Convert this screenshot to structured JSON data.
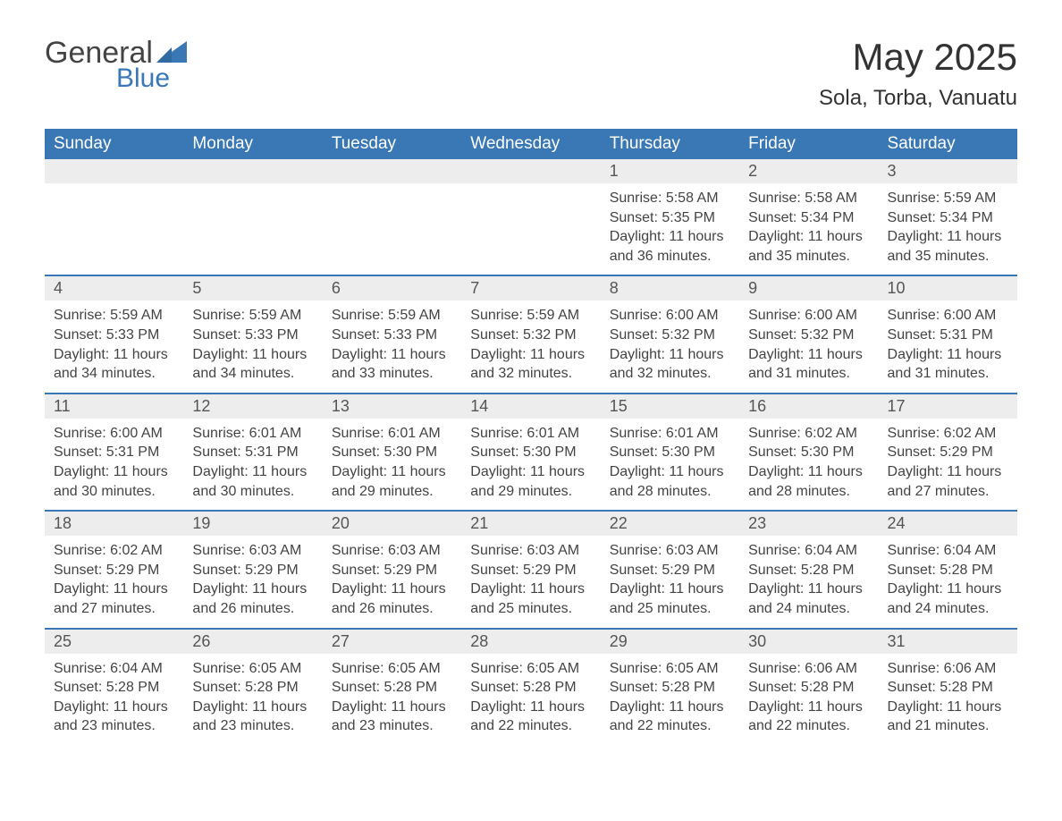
{
  "logo": {
    "general": "General",
    "blue": "Blue"
  },
  "title": "May 2025",
  "location": "Sola, Torba, Vanuatu",
  "header_row": [
    "Sunday",
    "Monday",
    "Tuesday",
    "Wednesday",
    "Thursday",
    "Friday",
    "Saturday"
  ],
  "colors": {
    "header_bg": "#3a78b5",
    "header_text": "#ffffff",
    "daynum_bg": "#ededed",
    "row_border": "#3a78b5",
    "logo_blue": "#3a78b5",
    "body_text": "#444444"
  },
  "layout": {
    "columns": 7,
    "rows": 5,
    "first_weekday_index": 4,
    "days_in_month": 31
  },
  "labels": {
    "sunrise": "Sunrise:",
    "sunset": "Sunset:",
    "daylight": "Daylight:"
  },
  "days": [
    {
      "n": "1",
      "sunrise": "5:58 AM",
      "sunset": "5:35 PM",
      "daylight": "11 hours and 36 minutes."
    },
    {
      "n": "2",
      "sunrise": "5:58 AM",
      "sunset": "5:34 PM",
      "daylight": "11 hours and 35 minutes."
    },
    {
      "n": "3",
      "sunrise": "5:59 AM",
      "sunset": "5:34 PM",
      "daylight": "11 hours and 35 minutes."
    },
    {
      "n": "4",
      "sunrise": "5:59 AM",
      "sunset": "5:33 PM",
      "daylight": "11 hours and 34 minutes."
    },
    {
      "n": "5",
      "sunrise": "5:59 AM",
      "sunset": "5:33 PM",
      "daylight": "11 hours and 34 minutes."
    },
    {
      "n": "6",
      "sunrise": "5:59 AM",
      "sunset": "5:33 PM",
      "daylight": "11 hours and 33 minutes."
    },
    {
      "n": "7",
      "sunrise": "5:59 AM",
      "sunset": "5:32 PM",
      "daylight": "11 hours and 32 minutes."
    },
    {
      "n": "8",
      "sunrise": "6:00 AM",
      "sunset": "5:32 PM",
      "daylight": "11 hours and 32 minutes."
    },
    {
      "n": "9",
      "sunrise": "6:00 AM",
      "sunset": "5:32 PM",
      "daylight": "11 hours and 31 minutes."
    },
    {
      "n": "10",
      "sunrise": "6:00 AM",
      "sunset": "5:31 PM",
      "daylight": "11 hours and 31 minutes."
    },
    {
      "n": "11",
      "sunrise": "6:00 AM",
      "sunset": "5:31 PM",
      "daylight": "11 hours and 30 minutes."
    },
    {
      "n": "12",
      "sunrise": "6:01 AM",
      "sunset": "5:31 PM",
      "daylight": "11 hours and 30 minutes."
    },
    {
      "n": "13",
      "sunrise": "6:01 AM",
      "sunset": "5:30 PM",
      "daylight": "11 hours and 29 minutes."
    },
    {
      "n": "14",
      "sunrise": "6:01 AM",
      "sunset": "5:30 PM",
      "daylight": "11 hours and 29 minutes."
    },
    {
      "n": "15",
      "sunrise": "6:01 AM",
      "sunset": "5:30 PM",
      "daylight": "11 hours and 28 minutes."
    },
    {
      "n": "16",
      "sunrise": "6:02 AM",
      "sunset": "5:30 PM",
      "daylight": "11 hours and 28 minutes."
    },
    {
      "n": "17",
      "sunrise": "6:02 AM",
      "sunset": "5:29 PM",
      "daylight": "11 hours and 27 minutes."
    },
    {
      "n": "18",
      "sunrise": "6:02 AM",
      "sunset": "5:29 PM",
      "daylight": "11 hours and 27 minutes."
    },
    {
      "n": "19",
      "sunrise": "6:03 AM",
      "sunset": "5:29 PM",
      "daylight": "11 hours and 26 minutes."
    },
    {
      "n": "20",
      "sunrise": "6:03 AM",
      "sunset": "5:29 PM",
      "daylight": "11 hours and 26 minutes."
    },
    {
      "n": "21",
      "sunrise": "6:03 AM",
      "sunset": "5:29 PM",
      "daylight": "11 hours and 25 minutes."
    },
    {
      "n": "22",
      "sunrise": "6:03 AM",
      "sunset": "5:29 PM",
      "daylight": "11 hours and 25 minutes."
    },
    {
      "n": "23",
      "sunrise": "6:04 AM",
      "sunset": "5:28 PM",
      "daylight": "11 hours and 24 minutes."
    },
    {
      "n": "24",
      "sunrise": "6:04 AM",
      "sunset": "5:28 PM",
      "daylight": "11 hours and 24 minutes."
    },
    {
      "n": "25",
      "sunrise": "6:04 AM",
      "sunset": "5:28 PM",
      "daylight": "11 hours and 23 minutes."
    },
    {
      "n": "26",
      "sunrise": "6:05 AM",
      "sunset": "5:28 PM",
      "daylight": "11 hours and 23 minutes."
    },
    {
      "n": "27",
      "sunrise": "6:05 AM",
      "sunset": "5:28 PM",
      "daylight": "11 hours and 23 minutes."
    },
    {
      "n": "28",
      "sunrise": "6:05 AM",
      "sunset": "5:28 PM",
      "daylight": "11 hours and 22 minutes."
    },
    {
      "n": "29",
      "sunrise": "6:05 AM",
      "sunset": "5:28 PM",
      "daylight": "11 hours and 22 minutes."
    },
    {
      "n": "30",
      "sunrise": "6:06 AM",
      "sunset": "5:28 PM",
      "daylight": "11 hours and 22 minutes."
    },
    {
      "n": "31",
      "sunrise": "6:06 AM",
      "sunset": "5:28 PM",
      "daylight": "11 hours and 21 minutes."
    }
  ]
}
